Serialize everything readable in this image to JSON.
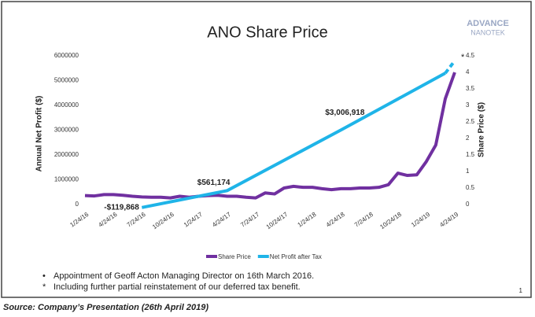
{
  "logo": [
    "ADVANCE",
    "NANOTEK"
  ],
  "chart_data": {
    "type": "line",
    "title": "ANO Share Price",
    "categories": [
      "1/24/16",
      null,
      null,
      "4/24/16",
      null,
      null,
      "7/24/16",
      null,
      null,
      "10/24/16",
      null,
      null,
      "1/24/17",
      null,
      null,
      "4/24/17",
      null,
      null,
      "7/24/17",
      null,
      null,
      "10/24/17",
      null,
      null,
      "1/24/18",
      null,
      null,
      "4/24/18",
      null,
      null,
      "7/24/18",
      null,
      null,
      "10/24/18",
      null,
      null,
      "1/24/19",
      null,
      null,
      "4/24/19"
    ],
    "ylabel": "Annual Net Profit ($)",
    "y2label": "Share Price ($)",
    "ylim": [
      0,
      6000000
    ],
    "yticks": [
      0,
      1000000,
      2000000,
      3000000,
      4000000,
      5000000,
      6000000
    ],
    "y2lim": [
      0,
      4.5
    ],
    "y2ticks": [
      0,
      0.5,
      1,
      1.5,
      2,
      2.5,
      3,
      3.5,
      4,
      4.5
    ],
    "series": [
      {
        "name": "Share Price",
        "color": "#7030a0",
        "axis": "y2",
        "values": [
          0.27,
          0.26,
          0.3,
          0.3,
          0.28,
          0.25,
          0.23,
          0.22,
          0.22,
          0.2,
          0.25,
          0.22,
          0.25,
          0.27,
          0.28,
          0.25,
          0.25,
          0.22,
          0.2,
          0.35,
          0.32,
          0.5,
          0.55,
          0.52,
          0.52,
          0.48,
          0.45,
          0.48,
          0.48,
          0.5,
          0.5,
          0.52,
          0.6,
          0.95,
          0.88,
          0.9,
          1.3,
          1.8,
          3.2,
          4.0
        ]
      },
      {
        "name": "Net Profit after Tax",
        "color": "#1fb4e8",
        "values": [
          null,
          null,
          null,
          null,
          null,
          null,
          -119868,
          null,
          null,
          null,
          null,
          null,
          null,
          null,
          null,
          561174,
          null,
          null,
          null,
          null,
          null,
          null,
          null,
          null,
          null,
          null,
          null,
          3006918,
          null,
          null,
          null,
          null,
          null,
          null,
          null,
          null,
          null,
          null,
          5300000,
          5800000
        ],
        "value_labels": [
          null,
          null,
          null,
          null,
          null,
          null,
          "-$119,868",
          null,
          null,
          null,
          null,
          null,
          null,
          null,
          null,
          "$561,174",
          null,
          null,
          null,
          null,
          null,
          null,
          null,
          null,
          null,
          null,
          null,
          "$3,006,918",
          null,
          null,
          null,
          null,
          null,
          null,
          null,
          null,
          null,
          null,
          null,
          null
        ]
      }
    ],
    "annotation": "*",
    "legend": "bottom"
  },
  "notes": [
    "Appointment of Geoff Acton Managing Director on 16th March 2016.",
    "Including further partial reinstatement of our deferred tax benefit."
  ],
  "note_markers": [
    "•",
    "*"
  ],
  "page_number": "1",
  "source": "Source: Company’s Presentation (26th April 2019)"
}
